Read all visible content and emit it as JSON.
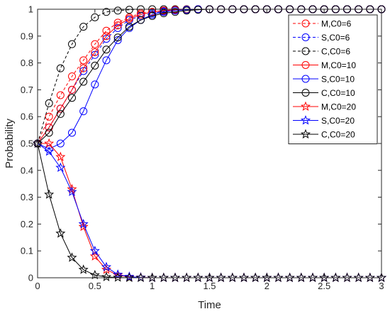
{
  "chart_data": {
    "type": "line",
    "xlabel": "Time",
    "ylabel": "Probability",
    "xlim": [
      0,
      3
    ],
    "ylim": [
      0,
      1
    ],
    "xticks": [
      "0",
      "0.5",
      "1",
      "1.5",
      "2",
      "2.5",
      "3"
    ],
    "yticks": [
      "0",
      "0.1",
      "0.2",
      "0.3",
      "0.4",
      "0.5",
      "0.6",
      "0.7",
      "0.8",
      "0.9",
      "1"
    ],
    "grid": false,
    "legend_position": "top-right",
    "x": [
      0,
      0.1,
      0.2,
      0.3,
      0.4,
      0.5,
      0.6,
      0.7,
      0.8,
      0.9,
      1.0,
      1.1,
      1.2,
      1.3,
      1.4,
      1.5,
      1.6,
      1.7,
      1.8,
      1.9,
      2.0,
      2.1,
      2.2,
      2.3,
      2.4,
      2.5,
      2.6,
      2.7,
      2.8,
      2.9,
      3.0
    ],
    "series": [
      {
        "name": "M,C0=6",
        "color": "#ff0000",
        "dash": "dashed",
        "marker": "circle",
        "values": [
          0.5,
          0.6,
          0.68,
          0.75,
          0.81,
          0.87,
          0.92,
          0.95,
          0.97,
          0.985,
          0.99,
          0.995,
          0.998,
          0.999,
          1,
          1,
          1,
          1,
          1,
          1,
          1,
          1,
          1,
          1,
          1,
          1,
          1,
          1,
          1,
          1,
          1
        ]
      },
      {
        "name": "S,C0=6",
        "color": "#0000ff",
        "dash": "dashed",
        "marker": "circle",
        "values": [
          0.5,
          0.56,
          0.63,
          0.7,
          0.77,
          0.83,
          0.89,
          0.93,
          0.96,
          0.975,
          0.985,
          0.992,
          0.996,
          0.998,
          1,
          1,
          1,
          1,
          1,
          1,
          1,
          1,
          1,
          1,
          1,
          1,
          1,
          1,
          1,
          1,
          1
        ]
      },
      {
        "name": "C,C0=6",
        "color": "#000000",
        "dash": "dashed",
        "marker": "circle",
        "values": [
          0.5,
          0.65,
          0.78,
          0.87,
          0.935,
          0.97,
          0.99,
          0.995,
          0.998,
          1,
          1,
          1,
          1,
          1,
          1,
          1,
          1,
          1,
          1,
          1,
          1,
          1,
          1,
          1,
          1,
          1,
          1,
          1,
          1,
          1,
          1
        ]
      },
      {
        "name": "M,C0=10",
        "color": "#ff0000",
        "dash": "solid",
        "marker": "circle",
        "values": [
          0.5,
          0.56,
          0.63,
          0.7,
          0.78,
          0.84,
          0.9,
          0.94,
          0.965,
          0.98,
          0.99,
          0.995,
          0.998,
          0.999,
          1,
          1,
          1,
          1,
          1,
          1,
          1,
          1,
          1,
          1,
          1,
          1,
          1,
          1,
          1,
          1,
          1
        ]
      },
      {
        "name": "S,C0=10",
        "color": "#0000ff",
        "dash": "solid",
        "marker": "circle",
        "values": [
          0.5,
          0.48,
          0.5,
          0.54,
          0.62,
          0.72,
          0.81,
          0.885,
          0.93,
          0.96,
          0.98,
          0.99,
          0.995,
          0.998,
          1,
          1,
          1,
          1,
          1,
          1,
          1,
          1,
          1,
          1,
          1,
          1,
          1,
          1,
          1,
          1,
          1
        ]
      },
      {
        "name": "C,C0=10",
        "color": "#000000",
        "dash": "solid",
        "marker": "circle",
        "values": [
          0.5,
          0.54,
          0.61,
          0.67,
          0.73,
          0.79,
          0.85,
          0.895,
          0.935,
          0.96,
          0.975,
          0.985,
          0.99,
          0.995,
          0.998,
          1,
          1,
          1,
          1,
          1,
          1,
          1,
          1,
          1,
          1,
          1,
          1,
          1,
          1,
          1,
          1
        ]
      },
      {
        "name": "M,C0=20",
        "color": "#ff0000",
        "dash": "solid",
        "marker": "star",
        "values": [
          0.5,
          0.5,
          0.45,
          0.33,
          0.19,
          0.08,
          0.03,
          0.01,
          0.003,
          0.001,
          0,
          0,
          0,
          0,
          0,
          0,
          0,
          0,
          0,
          0,
          0,
          0,
          0,
          0,
          0,
          0,
          0,
          0,
          0,
          0,
          0
        ]
      },
      {
        "name": "S,C0=20",
        "color": "#0000ff",
        "dash": "solid",
        "marker": "star",
        "values": [
          0.5,
          0.47,
          0.41,
          0.32,
          0.2,
          0.1,
          0.04,
          0.012,
          0.004,
          0.001,
          0,
          0,
          0,
          0,
          0,
          0,
          0,
          0,
          0,
          0,
          0,
          0,
          0,
          0,
          0,
          0,
          0,
          0,
          0,
          0,
          0
        ]
      },
      {
        "name": "C,C0=20",
        "color": "#000000",
        "dash": "solid",
        "marker": "star",
        "values": [
          0.5,
          0.31,
          0.165,
          0.075,
          0.03,
          0.01,
          0.003,
          0.001,
          0,
          0,
          0,
          0,
          0,
          0,
          0,
          0,
          0,
          0,
          0,
          0,
          0,
          0,
          0,
          0,
          0,
          0,
          0,
          0,
          0,
          0,
          0
        ]
      }
    ]
  }
}
